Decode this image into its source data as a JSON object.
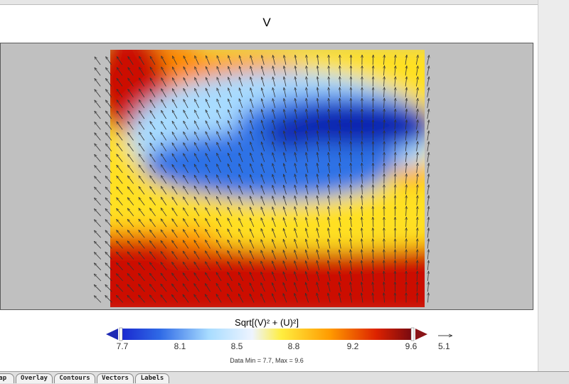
{
  "plot": {
    "title": "V",
    "field_colors": {
      "red": "#cc1100",
      "orange": "#ff8c00",
      "yellow": "#ffe020",
      "lightblue": "#a8dcff",
      "midblue": "#2f72e6",
      "darkblue": "#0a22b0",
      "background": "#c0c0c0"
    },
    "vector_color": "#333333"
  },
  "colorbar": {
    "title": "Sqrt[(V)² + (U)²]",
    "ticks": [
      "7.7",
      "8.1",
      "8.5",
      "8.8",
      "9.2",
      "9.6"
    ],
    "vmin": 7.7,
    "vmax": 9.6,
    "under_color": "#1e2ab4",
    "over_color": "#8a1418",
    "data_minmax": "Data Min = 7.7, Max = 9.6",
    "reference_vector": "5.1"
  },
  "tabs": [
    {
      "label": "Map"
    },
    {
      "label": "Overlay"
    },
    {
      "label": "Contours"
    },
    {
      "label": "Vectors"
    },
    {
      "label": "Labels"
    }
  ]
}
